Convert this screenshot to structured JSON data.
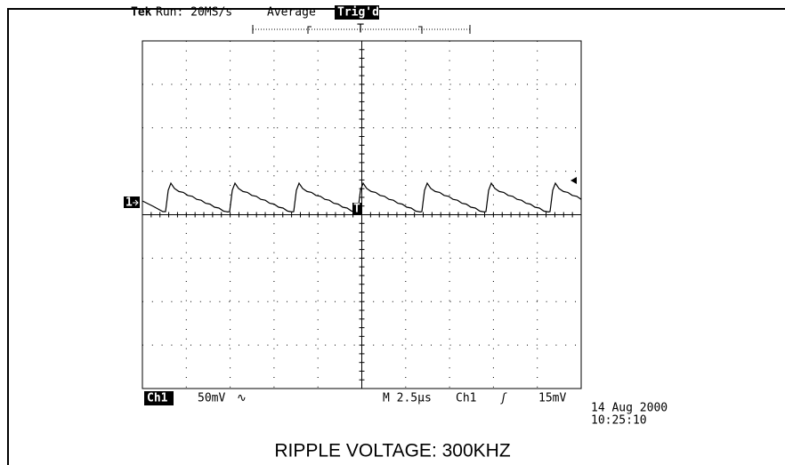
{
  "header": {
    "brand": "Tek",
    "status": "Run: 20MS/s",
    "mode": "Average",
    "trigger": "Trig'd",
    "trigger_position": "T"
  },
  "screen": {
    "channel_marker": "1",
    "trigger_marker": "T"
  },
  "footer": {
    "channel": "Ch1",
    "scale": "50mV",
    "coupling": "∿",
    "timebase": "M 2.5µs",
    "trigger_source": "Ch1",
    "trigger_slope": "ʃ",
    "trigger_level": "15mV",
    "date": "14 Aug 2000",
    "time": "10:25:10"
  },
  "caption": "RIPPLE VOLTAGE: 300KHZ"
}
